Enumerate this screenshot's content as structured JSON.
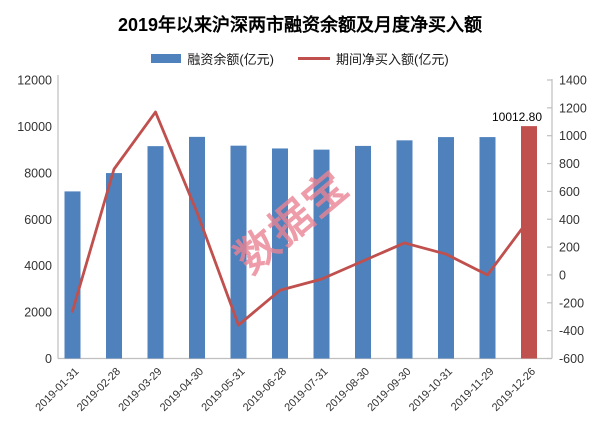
{
  "title": "2019年以来沪深两市融资余额及月度净买入额",
  "watermark": "数据宝",
  "legend": {
    "bar_label": "融资余额(亿元)",
    "line_label": "期间净买入额(亿元)"
  },
  "colors": {
    "bar": "#4f81bd",
    "highlight_bar": "#c0504d",
    "line": "#c0504d",
    "axis": "#bfbfbf",
    "tick_text": "#333333",
    "data_label_text": "#000000",
    "watermark": "#ea8494"
  },
  "chart_data": {
    "type": "bar",
    "combo": "bar+line dual-axis",
    "title": "2019年以来沪深两市融资余额及月度净买入额",
    "categories": [
      "2019-01-31",
      "2019-02-28",
      "2019-03-29",
      "2019-04-30",
      "2019-05-31",
      "2019-06-28",
      "2019-07-31",
      "2019-08-30",
      "2019-09-30",
      "2019-10-31",
      "2019-11-29",
      "2019-12-26"
    ],
    "series": [
      {
        "name": "融资余额(亿元)",
        "type": "bar",
        "axis": "left",
        "values": [
          7200,
          7990,
          9150,
          9550,
          9170,
          9050,
          9000,
          9160,
          9400,
          9540,
          9540,
          10012.8
        ],
        "highlight_index": 11
      },
      {
        "name": "期间净买入额(亿元)",
        "type": "line",
        "axis": "right",
        "values": [
          -260,
          760,
          1170,
          450,
          -360,
          -110,
          -30,
          100,
          230,
          150,
          0,
          400
        ]
      }
    ],
    "left_axis": {
      "min": 0,
      "max": 12000,
      "step": 2000,
      "ticks": [
        0,
        2000,
        4000,
        6000,
        8000,
        10000,
        12000
      ]
    },
    "right_axis": {
      "min": -600,
      "max": 1400,
      "step": 200,
      "ticks": [
        -600,
        -400,
        -200,
        0,
        200,
        400,
        600,
        800,
        1000,
        1200,
        1400
      ]
    },
    "data_labels": [
      {
        "series": 0,
        "index": 11,
        "text": "10012.80"
      }
    ],
    "grid": false,
    "legend_position": "top"
  }
}
